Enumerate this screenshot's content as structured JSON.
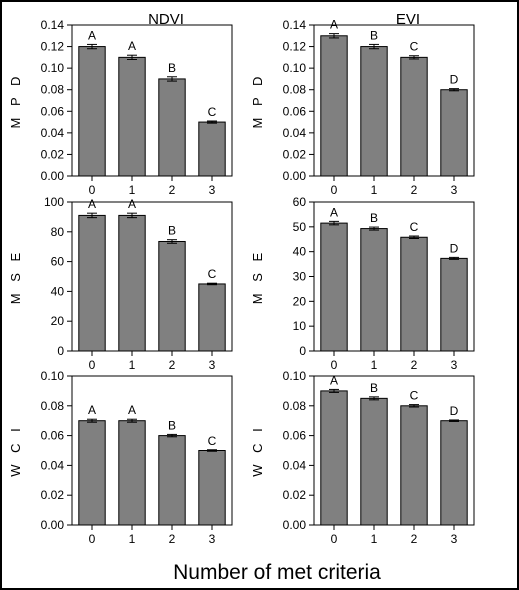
{
  "column_titles": [
    "NDVI",
    "EVI"
  ],
  "xaxis_title": "Number of met criteria",
  "chart_data": [
    {
      "id": "ndvi-mpd",
      "type": "bar",
      "column": "NDVI",
      "ylabel": "M P D",
      "categories": [
        "0",
        "1",
        "2",
        "3"
      ],
      "values": [
        0.12,
        0.11,
        0.09,
        0.05
      ],
      "errors": [
        0.002,
        0.002,
        0.002,
        0.001
      ],
      "letters": [
        "A",
        "A",
        "B",
        "C"
      ],
      "ylim": [
        0,
        0.14
      ],
      "yticks": [
        "0.00",
        "0.02",
        "0.04",
        "0.06",
        "0.08",
        "0.10",
        "0.12",
        "0.14"
      ]
    },
    {
      "id": "evi-mpd",
      "type": "bar",
      "column": "EVI",
      "ylabel": "M P D",
      "categories": [
        "0",
        "1",
        "2",
        "3"
      ],
      "values": [
        0.13,
        0.12,
        0.11,
        0.08
      ],
      "errors": [
        0.002,
        0.002,
        0.0015,
        0.001
      ],
      "letters": [
        "A",
        "B",
        "C",
        "D"
      ],
      "ylim": [
        0,
        0.14
      ],
      "yticks": [
        "0.00",
        "0.02",
        "0.04",
        "0.06",
        "0.08",
        "0.10",
        "0.12",
        "0.14"
      ]
    },
    {
      "id": "ndvi-mse",
      "type": "bar",
      "column": "NDVI",
      "ylabel": "M S E",
      "categories": [
        "0",
        "1",
        "2",
        "3"
      ],
      "values": [
        91,
        91,
        73.5,
        45
      ],
      "errors": [
        1.5,
        1.5,
        1.2,
        0.5
      ],
      "letters": [
        "A",
        "A",
        "B",
        "C"
      ],
      "ylim": [
        0,
        100
      ],
      "yticks": [
        "0",
        "20",
        "40",
        "60",
        "80",
        "100"
      ]
    },
    {
      "id": "evi-mse",
      "type": "bar",
      "column": "EVI",
      "ylabel": "M S E",
      "categories": [
        "0",
        "1",
        "2",
        "3"
      ],
      "values": [
        51.5,
        49.3,
        45.8,
        37.3
      ],
      "errors": [
        0.7,
        0.6,
        0.5,
        0.4
      ],
      "letters": [
        "A",
        "B",
        "C",
        "D"
      ],
      "ylim": [
        0,
        60
      ],
      "yticks": [
        "0",
        "10",
        "20",
        "30",
        "40",
        "50",
        "60"
      ]
    },
    {
      "id": "ndvi-wci",
      "type": "bar",
      "column": "NDVI",
      "ylabel": "W C I",
      "categories": [
        "0",
        "1",
        "2",
        "3"
      ],
      "values": [
        0.07,
        0.07,
        0.06,
        0.05
      ],
      "errors": [
        0.001,
        0.001,
        0.0008,
        0.0005
      ],
      "letters": [
        "A",
        "A",
        "B",
        "C"
      ],
      "ylim": [
        0,
        0.1
      ],
      "yticks": [
        "0.00",
        "0.02",
        "0.04",
        "0.06",
        "0.08",
        "0.10"
      ]
    },
    {
      "id": "evi-wci",
      "type": "bar",
      "column": "EVI",
      "ylabel": "W C I",
      "categories": [
        "0",
        "1",
        "2",
        "3"
      ],
      "values": [
        0.09,
        0.085,
        0.08,
        0.07
      ],
      "errors": [
        0.001,
        0.001,
        0.0008,
        0.0005
      ],
      "letters": [
        "A",
        "B",
        "C",
        "D"
      ],
      "ylim": [
        0,
        0.1
      ],
      "yticks": [
        "0.00",
        "0.02",
        "0.04",
        "0.06",
        "0.08",
        "0.10"
      ]
    }
  ],
  "colors": {
    "bar_fill": "#808080",
    "bar_stroke": "#000000",
    "axis": "#000000",
    "background": "#ffffff"
  }
}
